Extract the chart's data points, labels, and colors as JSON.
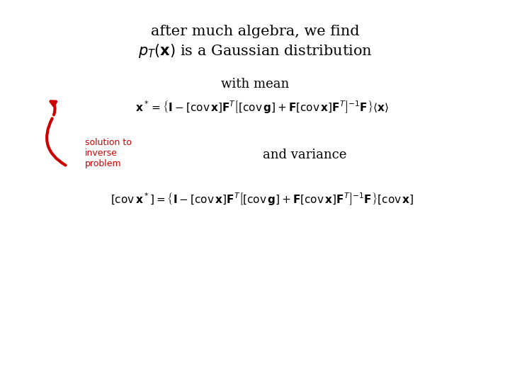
{
  "title_line1": "after much algebra, we find",
  "title_line2": "$p_T(\\mathbf{x})$ is a Gaussian distribution",
  "with_mean": "with mean",
  "eq_mean": "$\\mathbf{x}^* = \\left\\{\\mathbf{I} - [\\mathrm{cov}\\,\\mathbf{x}]\\mathbf{F}^T\\left[[\\mathrm{cov}\\,\\mathbf{g}] + \\mathbf{F}[\\mathrm{cov}\\,\\mathbf{x}]\\mathbf{F}^T\\right]^{-1}\\mathbf{F}\\right\\}\\langle\\mathbf{x}\\rangle$",
  "and_variance": "and variance",
  "eq_var": "$[\\mathrm{cov}\\,\\mathbf{x}^*] = \\left\\{\\mathbf{I} - [\\mathrm{cov}\\,\\mathbf{x}]\\mathbf{F}^T\\left[[\\mathrm{cov}\\,\\mathbf{g}] + \\mathbf{F}[\\mathrm{cov}\\,\\mathbf{x}]\\mathbf{F}^T\\right]^{-1}\\mathbf{F}\\right\\}[\\mathrm{cov}\\,\\mathbf{x}]$",
  "annotation_text": "solution to\ninverse\nproblem",
  "bg_color": "#ffffff",
  "text_color": "#000000",
  "red_color": "#cc0000",
  "title_fontsize": 15,
  "eq_fontsize": 11,
  "sub_fontsize": 13,
  "annot_fontsize": 9
}
